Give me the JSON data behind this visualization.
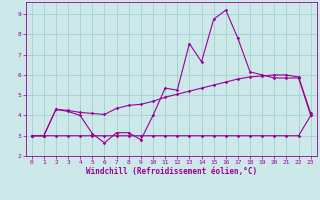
{
  "title": "",
  "xlabel": "Windchill (Refroidissement éolien,°C)",
  "ylabel": "",
  "xlim": [
    -0.5,
    23.5
  ],
  "ylim": [
    2.0,
    9.6
  ],
  "yticks": [
    2,
    3,
    4,
    5,
    6,
    7,
    8,
    9
  ],
  "xticks": [
    0,
    1,
    2,
    3,
    4,
    5,
    6,
    7,
    8,
    9,
    10,
    11,
    12,
    13,
    14,
    15,
    16,
    17,
    18,
    19,
    20,
    21,
    22,
    23
  ],
  "bg_color": "#cce8e8",
  "line_color": "#990099",
  "grid_color": "#99cccc",
  "line1_x": [
    0,
    1,
    2,
    3,
    4,
    5,
    6,
    7,
    8,
    9,
    10,
    11,
    12,
    13,
    14,
    15,
    16,
    17,
    18,
    19,
    20,
    21,
    22,
    23
  ],
  "line1_y": [
    3.0,
    3.0,
    4.3,
    4.2,
    4.0,
    3.1,
    2.65,
    3.15,
    3.15,
    2.8,
    4.0,
    5.35,
    5.25,
    7.55,
    6.65,
    8.75,
    9.2,
    7.8,
    6.15,
    6.0,
    5.85,
    5.85,
    5.85,
    4.0
  ],
  "line2_x": [
    0,
    1,
    2,
    3,
    4,
    5,
    6,
    7,
    8,
    9,
    10,
    11,
    12,
    13,
    14,
    15,
    16,
    17,
    18,
    19,
    20,
    21,
    22,
    23
  ],
  "line2_y": [
    3.0,
    3.0,
    4.3,
    4.25,
    4.15,
    4.1,
    4.05,
    4.35,
    4.5,
    4.55,
    4.7,
    4.9,
    5.05,
    5.2,
    5.35,
    5.5,
    5.65,
    5.8,
    5.9,
    5.95,
    6.0,
    6.0,
    5.9,
    4.1
  ],
  "line3_x": [
    0,
    1,
    2,
    3,
    4,
    5,
    6,
    7,
    8,
    9,
    10,
    11,
    12,
    13,
    14,
    15,
    16,
    17,
    18,
    19,
    20,
    21,
    22,
    23
  ],
  "line3_y": [
    3.0,
    3.0,
    3.0,
    3.0,
    3.0,
    3.0,
    3.0,
    3.0,
    3.0,
    3.0,
    3.0,
    3.0,
    3.0,
    3.0,
    3.0,
    3.0,
    3.0,
    3.0,
    3.0,
    3.0,
    3.0,
    3.0,
    3.0,
    4.0
  ],
  "marker": "D",
  "markersize": 1.8,
  "linewidth": 0.8,
  "tick_fontsize": 4.5,
  "label_fontsize": 5.5
}
